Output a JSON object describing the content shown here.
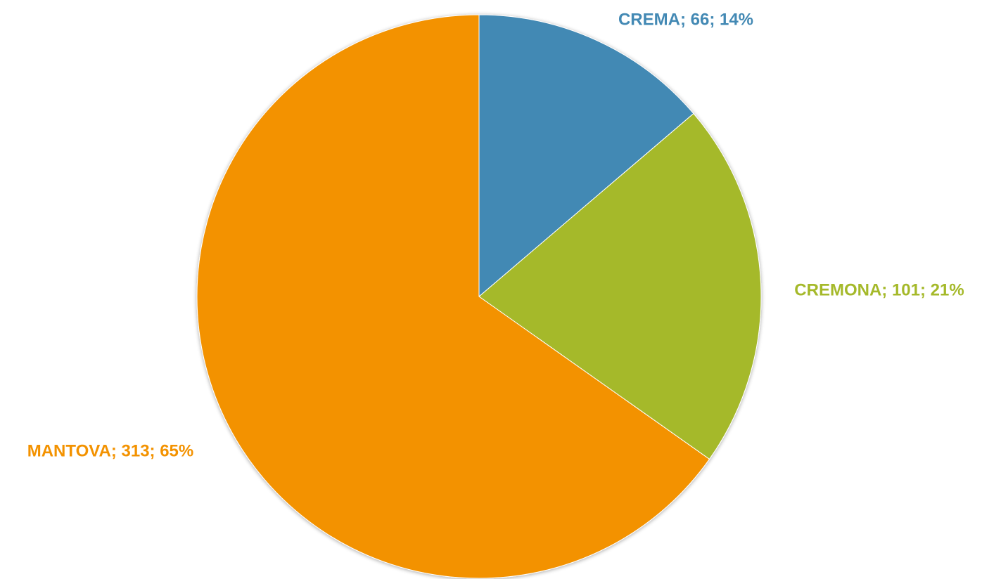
{
  "chart_data": {
    "type": "pie",
    "title": "",
    "start_angle_deg": 0,
    "direction": "clockwise",
    "slices": [
      {
        "category": "CREMA",
        "value": 66,
        "percent": 14,
        "label": "CREMA; 66; 14%",
        "color": "#4389B4"
      },
      {
        "category": "CREMONA",
        "value": 101,
        "percent": 21,
        "label": "CREMONA; 101; 21%",
        "color": "#A5B92A"
      },
      {
        "category": "MANTOVA",
        "value": 313,
        "percent": 65,
        "label": "MANTOVA; 313; 65%",
        "color": "#F39200"
      }
    ],
    "legend": "none",
    "data_labels": "outside"
  }
}
